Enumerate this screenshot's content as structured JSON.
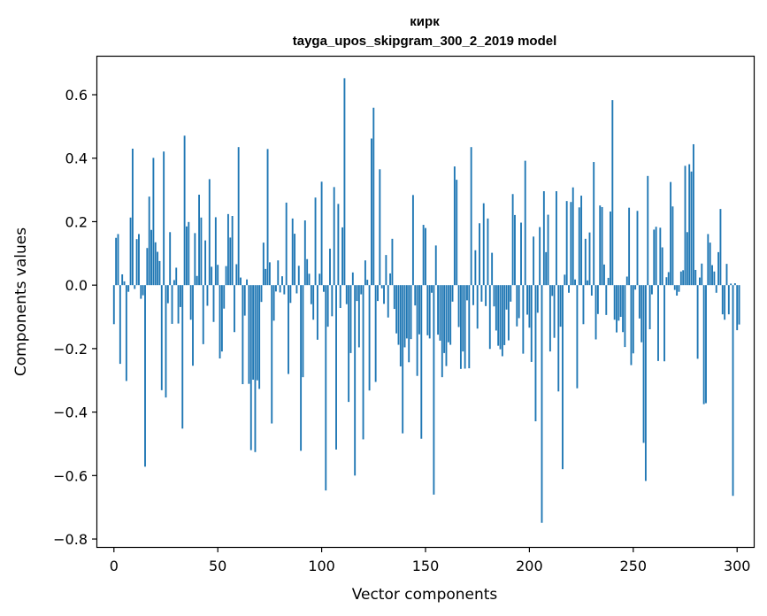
{
  "chart_data": {
    "type": "bar",
    "title": "кирк",
    "subtitle": "tayga_upos_skipgram_300_2_2019 model",
    "xlabel": "Vector components",
    "ylabel": "Components values",
    "xlim": [
      -8,
      308
    ],
    "ylim": [
      -0.825,
      0.72
    ],
    "xticks": [
      0,
      50,
      100,
      150,
      200,
      250,
      300
    ],
    "xtick_labels": [
      "0",
      "50",
      "100",
      "150",
      "200",
      "250",
      "300"
    ],
    "yticks": [
      -0.8,
      -0.6,
      -0.4,
      -0.2,
      0.0,
      0.2,
      0.4,
      0.6
    ],
    "ytick_labels": [
      "−0.8",
      "−0.6",
      "−0.4",
      "−0.2",
      "0.0",
      "0.2",
      "0.4",
      "0.6"
    ],
    "bar_color": "#1f77b4",
    "grid": false,
    "values": [
      -0.123,
      0.149,
      0.161,
      -0.248,
      0.034,
      0.012,
      -0.302,
      -0.021,
      0.213,
      0.43,
      -0.012,
      0.145,
      0.161,
      -0.043,
      -0.032,
      -0.572,
      0.117,
      0.279,
      0.174,
      0.401,
      0.135,
      0.105,
      0.076,
      -0.331,
      0.421,
      -0.354,
      -0.057,
      0.167,
      -0.122,
      0.016,
      0.055,
      -0.121,
      -0.069,
      -0.452,
      0.471,
      0.185,
      0.199,
      -0.109,
      -0.254,
      0.164,
      0.029,
      0.285,
      0.213,
      -0.186,
      0.141,
      -0.065,
      0.334,
      0.058,
      -0.116,
      0.214,
      0.064,
      -0.231,
      -0.209,
      -0.074,
      0.06,
      0.224,
      0.15,
      0.218,
      -0.148,
      0.066,
      0.435,
      0.024,
      -0.312,
      -0.096,
      0.018,
      -0.311,
      -0.52,
      -0.298,
      -0.526,
      -0.3,
      -0.327,
      -0.053,
      0.134,
      0.051,
      0.429,
      0.072,
      -0.436,
      -0.112,
      -0.02,
      0.078,
      -0.023,
      0.028,
      -0.029,
      0.26,
      -0.28,
      -0.056,
      0.21,
      0.162,
      -0.026,
      0.061,
      -0.522,
      -0.29,
      0.204,
      0.082,
      0.036,
      -0.06,
      -0.109,
      0.276,
      -0.172,
      0.036,
      0.326,
      -0.021,
      -0.647,
      -0.131,
      0.115,
      -0.098,
      0.309,
      -0.518,
      0.256,
      -0.072,
      0.182,
      0.652,
      -0.06,
      -0.368,
      -0.214,
      0.04,
      -0.6,
      -0.05,
      -0.196,
      -0.029,
      -0.486,
      0.078,
      0.017,
      -0.332,
      0.462,
      0.559,
      -0.305,
      -0.05,
      0.365,
      -0.01,
      -0.059,
      0.095,
      -0.102,
      0.037,
      0.146,
      -0.075,
      -0.152,
      -0.188,
      -0.256,
      -0.467,
      -0.196,
      -0.168,
      -0.243,
      -0.17,
      0.284,
      -0.064,
      -0.286,
      -0.155,
      -0.484,
      0.19,
      0.18,
      -0.158,
      -0.168,
      -0.024,
      -0.66,
      0.125,
      -0.156,
      -0.175,
      -0.29,
      -0.214,
      -0.255,
      -0.18,
      -0.188,
      -0.052,
      0.374,
      0.332,
      -0.132,
      -0.264,
      -0.209,
      -0.263,
      -0.048,
      -0.262,
      0.435,
      -0.063,
      0.11,
      -0.137,
      0.195,
      -0.052,
      0.258,
      -0.066,
      0.21,
      -0.201,
      0.102,
      -0.067,
      -0.143,
      -0.191,
      -0.202,
      -0.224,
      -0.189,
      -0.077,
      -0.174,
      -0.052,
      0.287,
      0.221,
      -0.13,
      -0.104,
      0.197,
      -0.216,
      0.392,
      -0.093,
      -0.134,
      -0.242,
      0.153,
      -0.429,
      -0.087,
      0.183,
      -0.749,
      0.296,
      0.104,
      0.222,
      -0.209,
      -0.034,
      -0.166,
      0.296,
      -0.335,
      -0.131,
      -0.58,
      0.033,
      0.265,
      -0.024,
      0.262,
      0.308,
      0.018,
      -0.325,
      0.245,
      0.282,
      -0.123,
      0.146,
      0.015,
      0.166,
      -0.033,
      0.388,
      -0.171,
      -0.091,
      0.251,
      0.246,
      0.065,
      -0.094,
      0.023,
      0.232,
      0.583,
      -0.109,
      -0.149,
      -0.112,
      -0.1,
      -0.148,
      -0.195,
      0.027,
      0.244,
      -0.252,
      -0.215,
      -0.014,
      0.234,
      -0.105,
      -0.18,
      -0.497,
      -0.617,
      0.344,
      -0.139,
      -0.029,
      0.175,
      0.184,
      -0.239,
      0.181,
      0.119,
      -0.24,
      0.025,
      0.041,
      0.325,
      0.248,
      -0.015,
      -0.033,
      -0.021,
      0.043,
      0.047,
      0.376,
      0.167,
      0.381,
      0.358,
      0.444,
      0.048,
      -0.232,
      0.024,
      0.068,
      -0.375,
      -0.372,
      0.161,
      0.134,
      0.063,
      0.043,
      -0.024,
      0.104,
      0.24,
      -0.092,
      -0.109,
      0.067,
      -0.092,
      0.005,
      -0.664,
      0.006,
      -0.142,
      -0.124
    ]
  }
}
